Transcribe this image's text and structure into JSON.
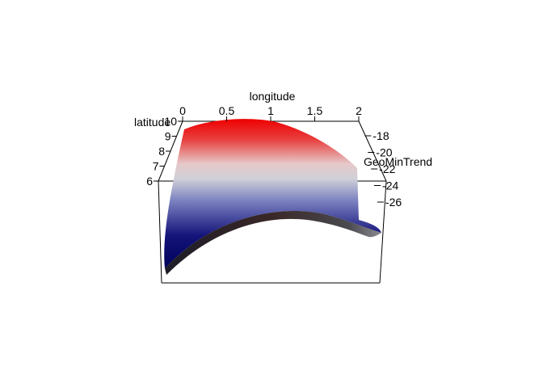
{
  "chart_data": {
    "type": "surface",
    "xlabel": "longitude",
    "ylabel": "latitude",
    "zlabel": "GeoMinTrend",
    "x_ticks": [
      "0",
      "0.5",
      "1",
      "1.5",
      "2"
    ],
    "y_ticks": [
      "6",
      "7",
      "8",
      "9",
      "10"
    ],
    "z_ticks": [
      "-18",
      "-20",
      "-22",
      "-24",
      "-26"
    ],
    "xlim": [
      0,
      2
    ],
    "ylim": [
      6,
      10
    ],
    "zlim": [
      -27,
      -17
    ],
    "colormap": [
      "#00005a",
      "#2e3aa0",
      "#d8d8d8",
      "#e63a3a",
      "#ee0000"
    ],
    "grid": false
  }
}
